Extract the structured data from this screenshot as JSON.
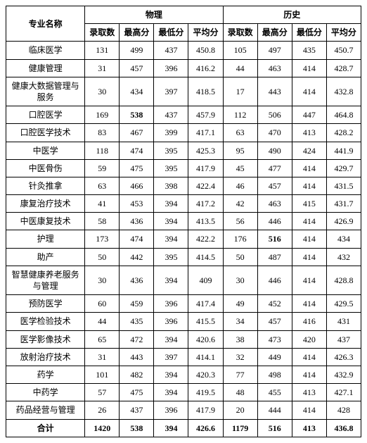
{
  "headers": {
    "major": "专业名称",
    "group1": "物理",
    "group2": "历史",
    "sub": {
      "admit": "录取数",
      "max": "最高分",
      "min": "最低分",
      "avg": "平均分"
    }
  },
  "rows": [
    {
      "name": "临床医学",
      "p_admit": "131",
      "p_max": "499",
      "p_min": "437",
      "p_avg": "450.8",
      "h_admit": "105",
      "h_max": "497",
      "h_min": "435",
      "h_avg": "450.7",
      "p_max_bold": false,
      "h_max_bold": false
    },
    {
      "name": "健康管理",
      "p_admit": "31",
      "p_max": "457",
      "p_min": "396",
      "p_avg": "416.2",
      "h_admit": "44",
      "h_max": "463",
      "h_min": "414",
      "h_avg": "428.7",
      "p_max_bold": false,
      "h_max_bold": false
    },
    {
      "name": "健康大数据管理与服务",
      "p_admit": "30",
      "p_max": "434",
      "p_min": "397",
      "p_avg": "418.5",
      "h_admit": "17",
      "h_max": "443",
      "h_min": "414",
      "h_avg": "432.8",
      "p_max_bold": false,
      "h_max_bold": false
    },
    {
      "name": "口腔医学",
      "p_admit": "169",
      "p_max": "538",
      "p_min": "437",
      "p_avg": "457.9",
      "h_admit": "112",
      "h_max": "506",
      "h_min": "447",
      "h_avg": "464.8",
      "p_max_bold": true,
      "h_max_bold": false
    },
    {
      "name": "口腔医学技术",
      "p_admit": "83",
      "p_max": "467",
      "p_min": "399",
      "p_avg": "417.1",
      "h_admit": "63",
      "h_max": "470",
      "h_min": "413",
      "h_avg": "428.2",
      "p_max_bold": false,
      "h_max_bold": false
    },
    {
      "name": "中医学",
      "p_admit": "118",
      "p_max": "474",
      "p_min": "395",
      "p_avg": "425.3",
      "h_admit": "95",
      "h_max": "490",
      "h_min": "424",
      "h_avg": "441.9",
      "p_max_bold": false,
      "h_max_bold": false
    },
    {
      "name": "中医骨伤",
      "p_admit": "59",
      "p_max": "475",
      "p_min": "395",
      "p_avg": "417.9",
      "h_admit": "45",
      "h_max": "477",
      "h_min": "414",
      "h_avg": "429.7",
      "p_max_bold": false,
      "h_max_bold": false
    },
    {
      "name": "针灸推拿",
      "p_admit": "63",
      "p_max": "466",
      "p_min": "398",
      "p_avg": "422.4",
      "h_admit": "46",
      "h_max": "457",
      "h_min": "414",
      "h_avg": "431.5",
      "p_max_bold": false,
      "h_max_bold": false
    },
    {
      "name": "康复治疗技术",
      "p_admit": "41",
      "p_max": "453",
      "p_min": "394",
      "p_avg": "417.2",
      "h_admit": "42",
      "h_max": "463",
      "h_min": "415",
      "h_avg": "431.7",
      "p_max_bold": false,
      "h_max_bold": false
    },
    {
      "name": "中医康复技术",
      "p_admit": "58",
      "p_max": "436",
      "p_min": "394",
      "p_avg": "413.5",
      "h_admit": "56",
      "h_max": "446",
      "h_min": "414",
      "h_avg": "426.9",
      "p_max_bold": false,
      "h_max_bold": false
    },
    {
      "name": "护理",
      "p_admit": "173",
      "p_max": "474",
      "p_min": "394",
      "p_avg": "422.2",
      "h_admit": "176",
      "h_max": "516",
      "h_min": "414",
      "h_avg": "434",
      "p_max_bold": false,
      "h_max_bold": true
    },
    {
      "name": "助产",
      "p_admit": "50",
      "p_max": "442",
      "p_min": "395",
      "p_avg": "414.5",
      "h_admit": "50",
      "h_max": "487",
      "h_min": "414",
      "h_avg": "432",
      "p_max_bold": false,
      "h_max_bold": false
    },
    {
      "name": "智慧健康养老服务与管理",
      "p_admit": "30",
      "p_max": "436",
      "p_min": "394",
      "p_avg": "409",
      "h_admit": "30",
      "h_max": "446",
      "h_min": "414",
      "h_avg": "428.8",
      "p_max_bold": false,
      "h_max_bold": false
    },
    {
      "name": "预防医学",
      "p_admit": "60",
      "p_max": "459",
      "p_min": "396",
      "p_avg": "417.4",
      "h_admit": "49",
      "h_max": "452",
      "h_min": "414",
      "h_avg": "429.5",
      "p_max_bold": false,
      "h_max_bold": false
    },
    {
      "name": "医学检验技术",
      "p_admit": "44",
      "p_max": "435",
      "p_min": "396",
      "p_avg": "415.5",
      "h_admit": "34",
      "h_max": "457",
      "h_min": "416",
      "h_avg": "431",
      "p_max_bold": false,
      "h_max_bold": false
    },
    {
      "name": "医学影像技术",
      "p_admit": "65",
      "p_max": "472",
      "p_min": "394",
      "p_avg": "420.6",
      "h_admit": "38",
      "h_max": "473",
      "h_min": "420",
      "h_avg": "437",
      "p_max_bold": false,
      "h_max_bold": false
    },
    {
      "name": "放射治疗技术",
      "p_admit": "31",
      "p_max": "443",
      "p_min": "397",
      "p_avg": "414.1",
      "h_admit": "32",
      "h_max": "449",
      "h_min": "414",
      "h_avg": "426.3",
      "p_max_bold": false,
      "h_max_bold": false
    },
    {
      "name": "药学",
      "p_admit": "101",
      "p_max": "482",
      "p_min": "394",
      "p_avg": "420.3",
      "h_admit": "77",
      "h_max": "498",
      "h_min": "414",
      "h_avg": "432.9",
      "p_max_bold": false,
      "h_max_bold": false
    },
    {
      "name": "中药学",
      "p_admit": "57",
      "p_max": "475",
      "p_min": "394",
      "p_avg": "419.5",
      "h_admit": "48",
      "h_max": "455",
      "h_min": "413",
      "h_avg": "427.1",
      "p_max_bold": false,
      "h_max_bold": false
    },
    {
      "name": "药品经营与管理",
      "p_admit": "26",
      "p_max": "437",
      "p_min": "396",
      "p_avg": "417.9",
      "h_admit": "20",
      "h_max": "444",
      "h_min": "414",
      "h_avg": "428",
      "p_max_bold": false,
      "h_max_bold": false
    }
  ],
  "total": {
    "name": "合计",
    "p_admit": "1420",
    "p_max": "538",
    "p_min": "394",
    "p_avg": "426.6",
    "h_admit": "1179",
    "h_max": "516",
    "h_min": "413",
    "h_avg": "436.8"
  }
}
